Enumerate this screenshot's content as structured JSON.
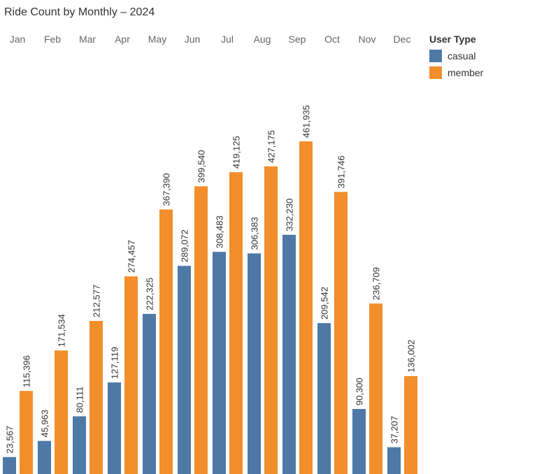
{
  "title": "Ride Count by Monthly – 2024",
  "legend": {
    "title": "User Type",
    "items": [
      {
        "label": "casual",
        "color": "#4e79a7"
      },
      {
        "label": "member",
        "color": "#f28e2b"
      }
    ]
  },
  "chart_data": {
    "type": "bar",
    "title": "Ride Count by Monthly – 2024",
    "categories": [
      "Jan",
      "Feb",
      "Mar",
      "Apr",
      "May",
      "Jun",
      "Jul",
      "Aug",
      "Sep",
      "Oct",
      "Nov",
      "Dec"
    ],
    "series": [
      {
        "name": "casual",
        "color": "#4e79a7",
        "values": [
          23567,
          45963,
          80111,
          127119,
          222325,
          289072,
          308483,
          306383,
          332230,
          209542,
          90300,
          37207
        ]
      },
      {
        "name": "member",
        "color": "#f28e2b",
        "values": [
          115396,
          171534,
          212577,
          274457,
          367390,
          399540,
          419125,
          427175,
          461935,
          391746,
          236709,
          136002
        ]
      }
    ],
    "ylim": [
      0,
      500000
    ],
    "grid": false,
    "legend_position": "top-right",
    "value_labels": true
  }
}
